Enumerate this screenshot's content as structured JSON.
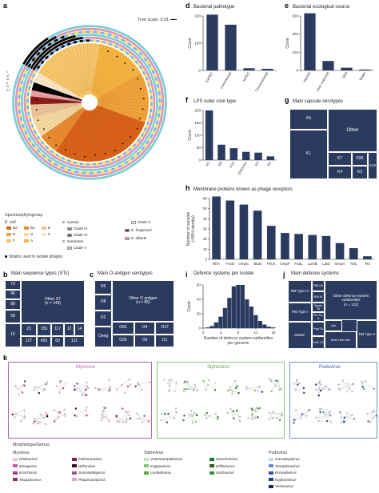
{
  "panel_a": {
    "letter": "a",
    "tree_scale": "Tree scale: 0.01",
    "legend_title": "Species/phylogroup",
    "ecoli_label": "E. coli",
    "phylogroups": [
      {
        "label": "B2",
        "color": "#d9621a"
      },
      {
        "label": "D",
        "color": "#f0a23a"
      },
      {
        "label": "F",
        "color": "#f6c66a"
      },
      {
        "label": "B1",
        "color": "#e88a30"
      },
      {
        "label": "G",
        "color": "#f5d9a1"
      },
      {
        "label": "A",
        "color": "#f3b441"
      },
      {
        "label": "E",
        "color": "#e9c49a"
      },
      {
        "label": "C",
        "color": "#fbe7c6"
      }
    ],
    "other_species": [
      {
        "label": "E. ruysiae",
        "color": ""
      },
      {
        "label": "Clade III",
        "color": "#8a8a8a"
      },
      {
        "label": "Clade IV",
        "color": "#5a5a5a"
      },
      {
        "label": "E. marmotae",
        "color": ""
      },
      {
        "label": "Clade V",
        "color": "#bdbdbd"
      },
      {
        "label": "Clade II",
        "color": "#e8e8e8"
      },
      {
        "label": "E. fergusonii",
        "color": "#8b1a1a"
      },
      {
        "label": "E. albertii",
        "color": "#e8a0a0"
      }
    ],
    "strains_label": "Strains used to isolate phages",
    "ring_labels": [
      "V",
      "VI",
      "III",
      "II",
      "IV",
      "ST"
    ]
  },
  "panel_b": {
    "letter": "b",
    "title": "Main sequence types (STs)",
    "cells": [
      "73",
      "95",
      "88",
      "58",
      "10",
      "Other ST\n(n = 149)",
      "23",
      "155",
      "117",
      "12",
      "14",
      "127",
      "452",
      "69",
      "131"
    ]
  },
  "panel_c": {
    "letter": "c",
    "title": "Main O-antigen serotypes",
    "cells": [
      "O6",
      "O8",
      "O2",
      "Oneg",
      "Other O antigen\n(n = 85)",
      "O81",
      "O4",
      "O17",
      "O25",
      "O9",
      "O1"
    ]
  },
  "panel_d": {
    "letter": "d",
    "title": "Bacterial pathotype",
    "ylabel": "Count",
    "chart_data": {
      "type": "bar",
      "categories": [
        "ExPEC",
        "Commensal",
        "InPEC",
        "Environmental"
      ],
      "values": [
        205,
        168,
        8,
        6
      ],
      "ylim": [
        0,
        200
      ],
      "yticks": [
        "0",
        "100",
        "200"
      ],
      "ylabel": "Count",
      "title": "Bacterial pathotype"
    }
  },
  "panel_e": {
    "letter": "e",
    "title": "Bacterial ecological source",
    "ylabel": "Count",
    "chart_data": {
      "type": "bar",
      "categories": [
        "Human",
        "Non-human mammal",
        "Bird",
        "Water"
      ],
      "values": [
        315,
        52,
        15,
        5
      ],
      "ylim": [
        0,
        300
      ],
      "yticks": [
        "0",
        "100",
        "200",
        "300"
      ],
      "ylabel": "Count",
      "title": "Bacterial ecological source"
    }
  },
  "panel_f": {
    "letter": "f",
    "title": "LPS outer core type",
    "ylabel": "Count",
    "chart_data": {
      "type": "bar",
      "categories": [
        "R1",
        "R3",
        "K12",
        "Unknown",
        "R4",
        "R2"
      ],
      "values": [
        200,
        62,
        48,
        33,
        30,
        15
      ],
      "ylim": [
        0,
        200
      ],
      "yticks": [
        "0",
        "50",
        "100",
        "150",
        "200"
      ],
      "ylabel": "Count",
      "title": "LPS outer core type"
    }
  },
  "panel_g": {
    "letter": "g",
    "title": "Main capsule serotypes",
    "cells": [
      "K5",
      "K1",
      "Other",
      "K7",
      "K96",
      "K4",
      "K2",
      "K15"
    ]
  },
  "panel_h": {
    "letter": "h",
    "title": "Membrane proteins known as phage receptors",
    "ylabel": "Number of variants (>99% identity)",
    "chart_data": {
      "type": "bar",
      "categories": [
        "NfrA",
        "YncD",
        "OmpC",
        "BtuB",
        "FhuA",
        "OmpF",
        "FadL",
        "LamB",
        "LptD",
        "OmpA",
        "TolC",
        "Tsx"
      ],
      "values": [
        62,
        58,
        54,
        48,
        33,
        26,
        25,
        24,
        23,
        16,
        11,
        3
      ],
      "ylim": [
        0,
        60
      ],
      "yticks": [
        "0",
        "10",
        "20",
        "30",
        "40",
        "50",
        "60"
      ],
      "ylabel": "Number of variants (>99% identity)",
      "title": "Membrane proteins known as phage receptors"
    }
  },
  "panel_i": {
    "letter": "i",
    "title": "Defence systems per isolate",
    "ylabel": "Count",
    "xlabel": "Number of defence system subfamilies per genome",
    "chart_data": {
      "type": "bar",
      "categories": [
        "1",
        "2",
        "3",
        "4",
        "5",
        "6",
        "7",
        "8",
        "9",
        "10",
        "11",
        "12",
        "13",
        "14",
        "15",
        "16"
      ],
      "values": [
        1,
        3,
        8,
        16,
        28,
        42,
        58,
        64,
        60,
        40,
        30,
        18,
        10,
        5,
        2,
        1
      ],
      "ylim": [
        0,
        60
      ],
      "yticks": [
        "0",
        "20",
        "40",
        "60"
      ],
      "xticks": [
        "0",
        "4",
        "8",
        "12",
        "16"
      ],
      "ylabel": "Count",
      "xlabel": "Number of defence system subfamilies per genome",
      "title": "Defence systems per isolate"
    }
  },
  "panel_j": {
    "letter": "j",
    "title": "Main defence systems",
    "cells": [
      "RM Type IV",
      "RM I/II",
      "RM III",
      "Other defence system subfamilies\n(n = 122)",
      "RM Type I",
      "Septu TA",
      "PD TA-3",
      "MazEF",
      "PsyrTA",
      "Abi",
      "CAS I-E",
      "Mok Hok Sok",
      "RM Type II"
    ]
  },
  "panel_k": {
    "letter": "k",
    "groups": [
      "Myovirus",
      "Siphovirus",
      "Podovirus"
    ],
    "legend_title": "Morphotype/Genus",
    "myovirus_header": "Myovirus",
    "siphovirus_header": "Siphovirus",
    "podovirus_header": "Podovirus",
    "myovirus_genera": [
      {
        "label": "Dhakavirus",
        "color": "#e9c6e6"
      },
      {
        "label": "Felixounavirus",
        "color": "#7a1f5c"
      },
      {
        "label": "Mosigvirus",
        "color": "#c65aa8"
      },
      {
        "label": "Wifcevirus",
        "color": "#3a0f2e"
      },
      {
        "label": "Krischvirus",
        "color": "#b8399a"
      },
      {
        "label": "Justusliebigvirus",
        "color": "#a74e8c"
      },
      {
        "label": "Tequatrovirus",
        "color": "#8c2f70"
      },
      {
        "label": "Phapecoctavirus",
        "color": "#dba3cf"
      }
    ],
    "siphovirus_genera": [
      {
        "label": "Veterinaerplatzvirus",
        "color": "#bfe3b4"
      },
      {
        "label": "Wanchaivirus",
        "color": "#1f7a2e"
      },
      {
        "label": "Kagunavirus",
        "color": "#7fc46b"
      },
      {
        "label": "Dhillonvirus",
        "color": "#2f5e20"
      },
      {
        "label": "Lambdavirus",
        "color": "#5aa646"
      },
      {
        "label": "Sashavirus",
        "color": "#3c8a35"
      }
    ],
    "podovirus_genera": [
      {
        "label": "Gamaleyavirus",
        "color": "#c6d7ee"
      },
      {
        "label": "Teseptimavirus",
        "color": "#6a8fce"
      },
      {
        "label": "Przondovirus",
        "color": "#3a5aa8"
      },
      {
        "label": "Kayfunavirus",
        "color": "#2a3f80"
      },
      {
        "label": "Vectrevirus",
        "color": "#1a2658"
      }
    ],
    "colors": {
      "myovirus": "#b264b5",
      "siphovirus": "#8fc17a",
      "podovirus": "#6f8fc8"
    }
  }
}
